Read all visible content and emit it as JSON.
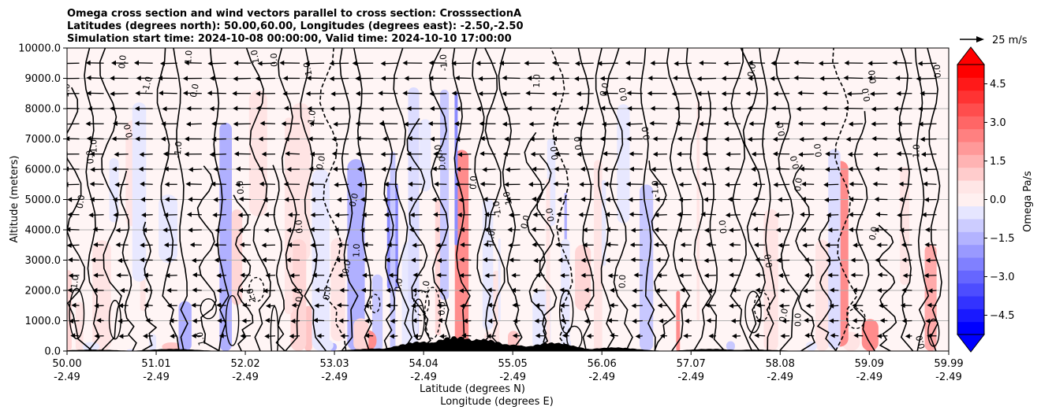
{
  "chart_data": {
    "type": "heatmap",
    "title_lines": [
      "Omega cross section and wind vectors parallel to cross section: CrosssectionA",
      "Latitudes (degrees north): 50.00,60.00, Longitudes (degrees east): -2.50,-2.50",
      "Simulation start time: 2024-10-08 00:00:00, Valid time: 2024-10-10 17:00:00"
    ],
    "ylabel": "Altitude (meters)",
    "xlabel_line1": "Latitude (degrees N)",
    "xlabel_line2": "Longitude (degrees E)",
    "ylim": [
      0,
      10000
    ],
    "xlim": [
      50.0,
      59.99
    ],
    "y_ticks": [
      {
        "value": 0,
        "label": "0.0"
      },
      {
        "value": 1000,
        "label": "1000.0"
      },
      {
        "value": 2000,
        "label": "2000.0"
      },
      {
        "value": 3000,
        "label": "3000.0"
      },
      {
        "value": 4000,
        "label": "4000.0"
      },
      {
        "value": 5000,
        "label": "5000.0"
      },
      {
        "value": 6000,
        "label": "6000.0"
      },
      {
        "value": 7000,
        "label": "7000.0"
      },
      {
        "value": 8000,
        "label": "8000.0"
      },
      {
        "value": 9000,
        "label": "9000.0"
      },
      {
        "value": 10000,
        "label": "10000.0"
      }
    ],
    "x_ticks": [
      {
        "value": 50.0,
        "lat": "50.00",
        "lon": "-2.49"
      },
      {
        "value": 51.01,
        "lat": "51.01",
        "lon": "-2.49"
      },
      {
        "value": 52.02,
        "lat": "52.02",
        "lon": "-2.49"
      },
      {
        "value": 53.03,
        "lat": "53.03",
        "lon": "-2.49"
      },
      {
        "value": 54.04,
        "lat": "54.04",
        "lon": "-2.49"
      },
      {
        "value": 55.05,
        "lat": "55.05",
        "lon": "-2.49"
      },
      {
        "value": 56.06,
        "lat": "56.06",
        "lon": "-2.49"
      },
      {
        "value": 57.07,
        "lat": "57.07",
        "lon": "-2.49"
      },
      {
        "value": 58.08,
        "lat": "58.08",
        "lon": "-2.49"
      },
      {
        "value": 59.09,
        "lat": "59.09",
        "lon": "-2.49"
      },
      {
        "value": 59.99,
        "lat": "59.99",
        "lon": "-2.49"
      }
    ],
    "grid": "horizontal",
    "colorbar": {
      "label": "Omega Pa/s",
      "range": [
        -5.25,
        5.25
      ],
      "step": 0.5,
      "extend": "both",
      "ticks": [
        {
          "value": 4.5,
          "label": "4.5"
        },
        {
          "value": 3.0,
          "label": "3.0"
        },
        {
          "value": 1.5,
          "label": "1.5"
        },
        {
          "value": 0.0,
          "label": "0.0"
        },
        {
          "value": -1.5,
          "label": "−1.5"
        },
        {
          "value": -3.0,
          "label": "−3.0"
        },
        {
          "value": -4.5,
          "label": "−4.5"
        }
      ]
    },
    "quiver_key": {
      "label": "25 m/s",
      "speed": 25
    },
    "contour_labels": [
      "0.0",
      "1.0",
      "-1.0"
    ],
    "terrain_peaks": [
      {
        "lat": 50.3,
        "height": 40
      },
      {
        "lat": 51.2,
        "height": 60
      },
      {
        "lat": 53.5,
        "height": 70
      },
      {
        "lat": 54.0,
        "height": 260
      },
      {
        "lat": 54.4,
        "height": 400
      },
      {
        "lat": 54.7,
        "height": 330
      },
      {
        "lat": 55.0,
        "height": 180
      },
      {
        "lat": 55.5,
        "height": 230
      },
      {
        "lat": 56.2,
        "height": 100
      },
      {
        "lat": 57.3,
        "height": 60
      },
      {
        "lat": 57.8,
        "height": 40
      }
    ],
    "colors": {
      "positive": "#ff0000",
      "negative": "#0000ff",
      "contour": "#000000",
      "grid": "#b0b0b0"
    }
  }
}
